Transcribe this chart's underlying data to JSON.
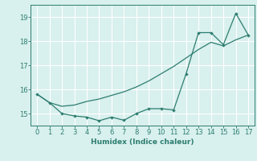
{
  "xlabel": "Humidex (Indice chaleur)",
  "x": [
    0,
    1,
    2,
    3,
    4,
    5,
    6,
    7,
    8,
    9,
    10,
    11,
    12,
    13,
    14,
    15,
    16,
    17
  ],
  "y_jagged": [
    15.8,
    15.45,
    15.0,
    14.9,
    14.85,
    14.7,
    14.85,
    14.72,
    15.0,
    15.2,
    15.2,
    15.15,
    16.65,
    18.35,
    18.35,
    17.85,
    19.15,
    18.25
  ],
  "y_smooth": [
    15.8,
    15.45,
    15.3,
    15.35,
    15.5,
    15.6,
    15.75,
    15.9,
    16.1,
    16.35,
    16.65,
    16.95,
    17.3,
    17.65,
    17.95,
    17.8,
    18.05,
    18.25
  ],
  "line_color": "#2d7d6f",
  "bg_color": "#d8f0ee",
  "grid_color": "#ffffff",
  "ylim": [
    14.5,
    19.5
  ],
  "xlim": [
    -0.5,
    17.5
  ],
  "yticks": [
    15,
    16,
    17,
    18,
    19
  ],
  "xticks": [
    0,
    1,
    2,
    3,
    4,
    5,
    6,
    7,
    8,
    9,
    10,
    11,
    12,
    13,
    14,
    15,
    16,
    17
  ]
}
